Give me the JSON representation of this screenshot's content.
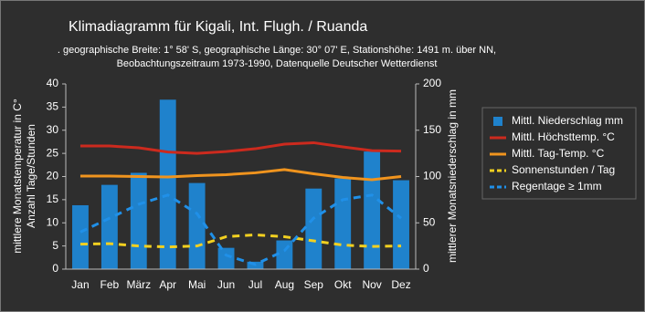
{
  "chart_data": {
    "type": "combo",
    "title": "Klimadiagramm für  Kigali, Int. Flugh. / Ruanda",
    "subtitle": [
      ". geographische Breite: 1° 58' S, geographische Länge: 30° 07' E, Stationshöhe: 1491 m. über NN,",
      "Beobachtungszeitraum 1973-1990, Datenquelle Deutscher Wetterdienst"
    ],
    "y_label": [
      "mittlere Monatstemperatur in C°",
      "Anzahl Tage/Stunden"
    ],
    "y2_label": "mittlerer Monatsniederschlag in mm",
    "categories": [
      "Jan",
      "Feb",
      "März",
      "Apr",
      "Mai",
      "Jun",
      "Jul",
      "Aug",
      "Sep",
      "Okt",
      "Nov",
      "Dez"
    ],
    "ylim": [
      0,
      40
    ],
    "yticks": [
      0,
      5,
      10,
      15,
      20,
      25,
      30,
      35,
      40
    ],
    "y2lim": [
      0,
      200
    ],
    "y2ticks": [
      0,
      50,
      100,
      150,
      200
    ],
    "grid": false,
    "legend": "right",
    "series": [
      {
        "name": "Mittl. Niederschlag mm",
        "type": "bar",
        "axis": "y2",
        "color": "#1f82cc",
        "values": [
          69,
          91,
          104,
          183,
          93,
          23,
          8,
          31,
          87,
          98,
          127,
          96
        ]
      },
      {
        "name": "Mittl. Höchsttemp. °C",
        "type": "line",
        "color": "#cc2a1e",
        "dash": false,
        "values": [
          26.6,
          26.6,
          26.2,
          25.3,
          25.0,
          25.4,
          26.0,
          27.0,
          27.3,
          26.4,
          25.6,
          25.5
        ]
      },
      {
        "name": "Mittl. Tag-Temp. °C",
        "type": "line",
        "color": "#f0941e",
        "dash": false,
        "values": [
          20.1,
          20.1,
          20.0,
          19.9,
          20.2,
          20.4,
          20.8,
          21.5,
          20.6,
          19.8,
          19.3,
          20.0
        ]
      },
      {
        "name": "Sonnenstunden / Tag",
        "type": "line",
        "color": "#f2d020",
        "dash": true,
        "values": [
          5.4,
          5.5,
          5.0,
          4.8,
          5.0,
          7.0,
          7.4,
          7.0,
          6.1,
          5.2,
          4.9,
          5.0
        ]
      },
      {
        "name": "Regentage ≥ 1mm",
        "type": "line",
        "color": "#2090e8",
        "dash": true,
        "values": [
          8,
          11,
          14,
          16,
          12,
          3,
          1,
          4,
          11,
          15,
          16,
          11
        ]
      }
    ]
  }
}
